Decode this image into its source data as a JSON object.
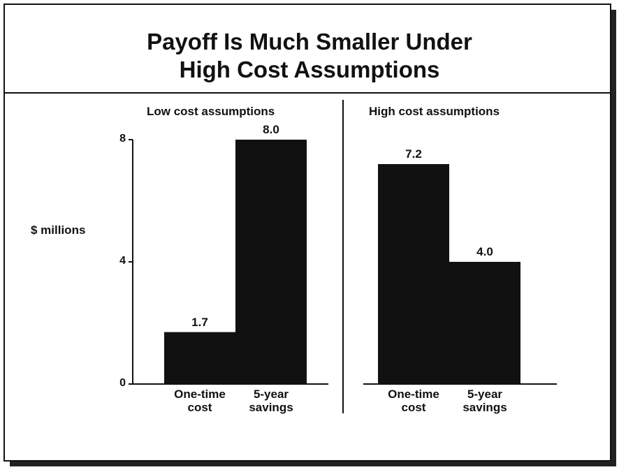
{
  "chart_data": {
    "type": "bar",
    "title": [
      "Payoff Is Much Smaller Under",
      "High Cost Assumptions"
    ],
    "ylabel": "$ millions",
    "ylim": [
      0,
      8
    ],
    "yticks": [
      0,
      4,
      8
    ],
    "color": "#111111",
    "panels": [
      {
        "subtitle": "Low cost assumptions",
        "categories": [
          "One-time cost",
          "5-year savings"
        ],
        "values": [
          1.7,
          8
        ],
        "value_labels": [
          "1.7",
          "8.0"
        ]
      },
      {
        "subtitle": "High cost assumptions",
        "categories": [
          "One-time cost",
          "5-year savings"
        ],
        "values": [
          7.2,
          4
        ],
        "value_labels": [
          "7.2",
          "4.0"
        ]
      }
    ]
  }
}
